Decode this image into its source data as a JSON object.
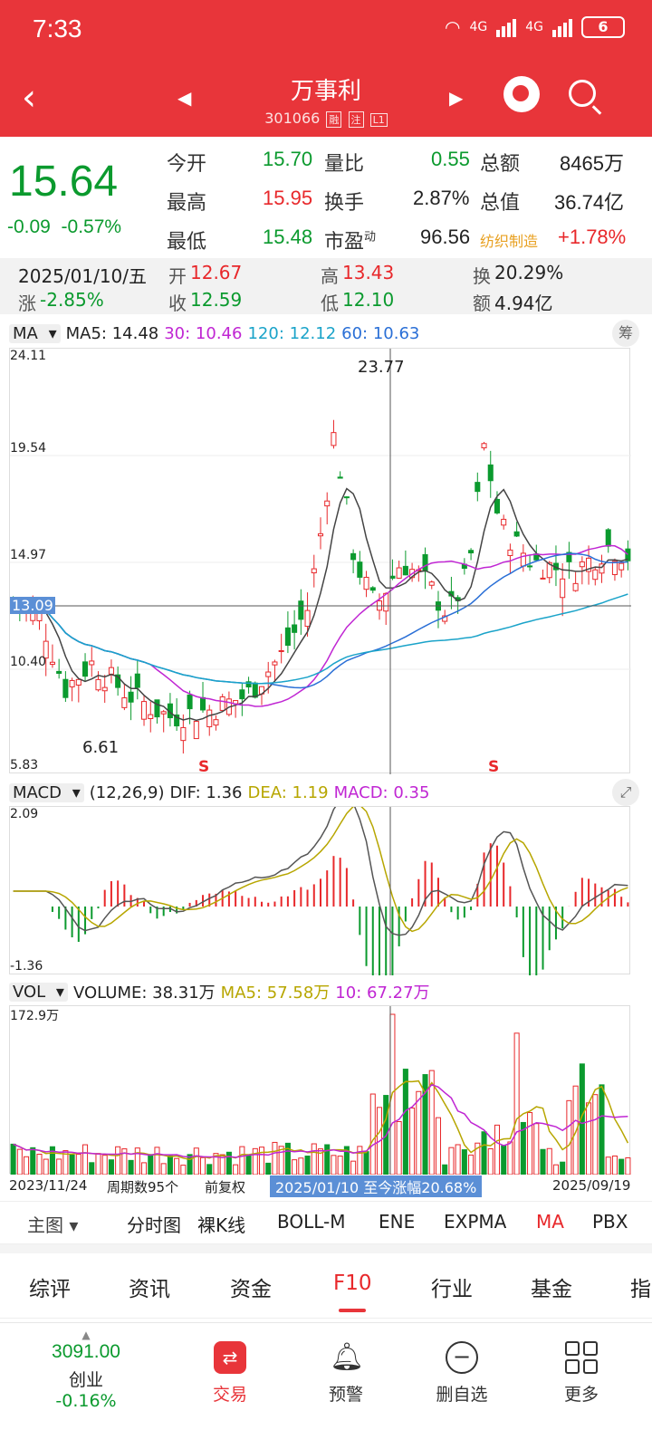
{
  "status": {
    "time": "7:33",
    "battery": "6",
    "net1": "4G",
    "net2": "4G"
  },
  "header": {
    "back": "‹",
    "title": "万事利",
    "code": "301066",
    "tag1": "融",
    "tag2": "注",
    "tag3": "L1",
    "prev": "◀",
    "next": "▶"
  },
  "quote": {
    "price": "15.64",
    "change": "-0.09",
    "change_pct": "-0.57%",
    "fields": [
      {
        "label": "今开",
        "value": "15.70",
        "color": "green"
      },
      {
        "label": "量比",
        "value": "0.55",
        "color": "green"
      },
      {
        "label": "总额",
        "value": "8465万",
        "color": "black"
      },
      {
        "label": "最高",
        "value": "15.95",
        "color": "red"
      },
      {
        "label": "换手",
        "value": "2.87%",
        "color": "black"
      },
      {
        "label": "总值",
        "value": "36.74亿",
        "color": "black"
      },
      {
        "label": "最低",
        "value": "15.48",
        "color": "green"
      },
      {
        "label": "市盈",
        "value": "96.56",
        "color": "black",
        "sup": "动"
      },
      {
        "label": "纺织制造",
        "value": "+1.78%",
        "color": "red"
      }
    ]
  },
  "day": {
    "date": "2025/01/10/五",
    "open_label": "开",
    "open": "12.67",
    "high_label": "高",
    "high": "13.43",
    "turn_label": "换",
    "turn": "20.29%",
    "chg_label": "涨",
    "chg": "-2.85%",
    "close_label": "收",
    "close": "12.59",
    "low_label": "低",
    "low": "12.10",
    "amt_label": "额",
    "amt": "4.94亿"
  },
  "ma_row": {
    "sel": "MA",
    "ma5": "MA5: 14.48",
    "ma30": "30: 10.46",
    "ma120": "120: 12.12",
    "ma60": "60: 10.63",
    "chip": "筹"
  },
  "main_axis": {
    "y1": "24.11",
    "y2": "19.54",
    "y3": "14.97",
    "y4": "13.09",
    "y5": "10.40",
    "y6": "5.83",
    "peak": "23.77",
    "low": "6.61",
    "s1": "S",
    "s2": "S"
  },
  "macd_row": {
    "sel": "MACD",
    "params": "(12,26,9)",
    "dif": "DIF: 1.36",
    "dea": "DEA: 1.19",
    "macd": "MACD: 0.35",
    "ymax": "2.09",
    "ymin": "-1.36"
  },
  "vol_row": {
    "sel": "VOL",
    "volume": "VOLUME: 38.31万",
    "ma5": "MA5: 57.58万",
    "ma10": "10: 67.27万",
    "ymax": "172.9万"
  },
  "x_axis": {
    "start": "2023/11/24",
    "period": "周期数95个",
    "adj": "前复权",
    "range": "2025/01/10 至今涨幅20.68%",
    "end": "2025/09/19"
  },
  "chart_tabs": [
    "主图 ▾",
    "分时图",
    "裸K线",
    "BOLL-M",
    "ENE",
    "EXPMA",
    "MA",
    "PBX"
  ],
  "section_tabs": [
    "综评",
    "资讯",
    "资金",
    "F10",
    "行业",
    "基金",
    "指"
  ],
  "bottom": {
    "index_value": "3091.00",
    "index_name": "创业",
    "index_chg": "-0.16%",
    "items": [
      "交易",
      "预警",
      "删自选",
      "更多"
    ]
  },
  "colors": {
    "up": "#e8282b",
    "down": "#0b9a2e",
    "header": "#e8353a"
  }
}
